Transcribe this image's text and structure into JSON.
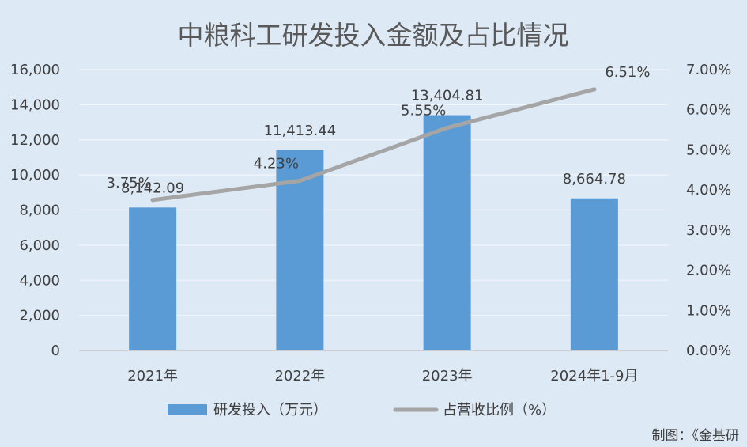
{
  "chart_data": {
    "type": "bar+line",
    "title": "中粮科工研发投入金额及占比情况",
    "categories": [
      "2021年",
      "2022年",
      "2023年",
      "2024年1-9月"
    ],
    "series": [
      {
        "name": "研发投入（万元）",
        "type": "bar",
        "axis": "left",
        "color": "#5b9bd5",
        "values": [
          8142.09,
          11413.44,
          13404.81,
          8664.78
        ],
        "labels": [
          "8,142.09",
          "11,413.44",
          "13,404.81",
          "8,664.78"
        ]
      },
      {
        "name": "占营收比例（%）",
        "type": "line",
        "axis": "right",
        "color": "#a5a5a5",
        "values": [
          3.75,
          4.23,
          5.55,
          6.51
        ],
        "labels": [
          "3.75%",
          "4.23%",
          "5.55%",
          "6.51%"
        ]
      }
    ],
    "y_left": {
      "range": [
        0,
        16000
      ],
      "ticks": [
        "0",
        "2,000",
        "4,000",
        "6,000",
        "8,000",
        "10,000",
        "12,000",
        "14,000",
        "16,000"
      ]
    },
    "y_right": {
      "range": [
        0,
        7
      ],
      "ticks": [
        "0.00%",
        "1.00%",
        "2.00%",
        "3.00%",
        "4.00%",
        "5.00%",
        "6.00%",
        "7.00%"
      ]
    },
    "grid": true,
    "legend_position": "bottom",
    "source": "制图：《金基研"
  }
}
